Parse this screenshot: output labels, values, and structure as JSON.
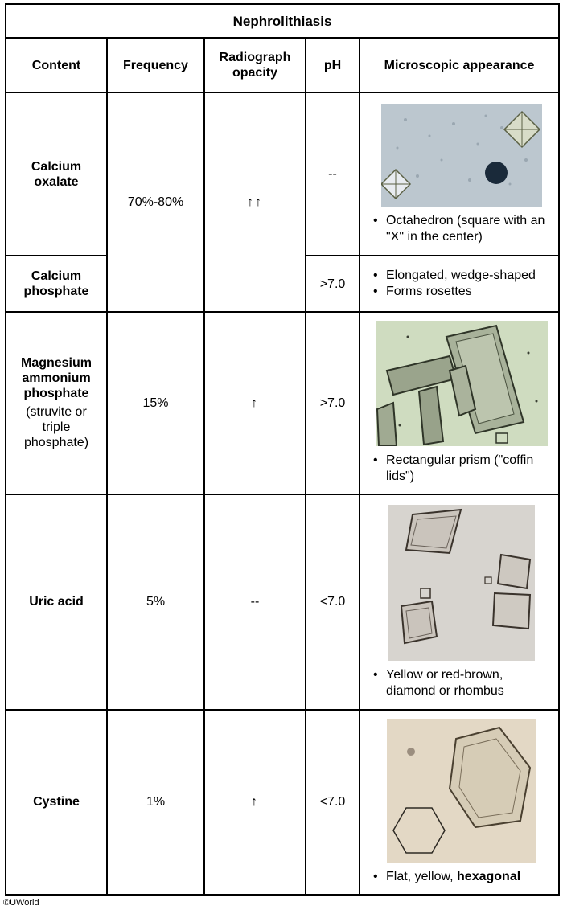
{
  "title": "Nephrolithiasis",
  "headers": [
    "Content",
    "Frequency",
    "Radiograph opacity",
    "pH",
    "Microscopic appearance"
  ],
  "rows": {
    "calcium_oxalate": {
      "name": "Calcium oxalate",
      "ph": "--",
      "desc": [
        "Octahedron (square with an \"X\" in the center)"
      ]
    },
    "calcium_phosphate": {
      "name": "Calcium phosphate",
      "ph": ">7.0",
      "desc": [
        "Elongated, wedge-shaped",
        "Forms rosettes"
      ]
    },
    "calcium_shared": {
      "frequency": "70%-80%",
      "opacity": "↑↑"
    },
    "struvite": {
      "name": "Magnesium ammonium phosphate",
      "sub": "(struvite or triple phosphate)",
      "frequency": "15%",
      "opacity": "↑",
      "ph": ">7.0",
      "desc": [
        "Rectangular prism (\"coffin lids\")"
      ]
    },
    "uric_acid": {
      "name": "Uric acid",
      "frequency": "5%",
      "opacity": "--",
      "ph": "<7.0",
      "desc": [
        "Yellow or red-brown, diamond or rhombus"
      ]
    },
    "cystine": {
      "name": "Cystine",
      "frequency": "1%",
      "opacity": "↑",
      "ph": "<7.0",
      "desc_prefix": "Flat, yellow, ",
      "desc_bold": "hexagonal"
    }
  },
  "footer": "©UWorld"
}
